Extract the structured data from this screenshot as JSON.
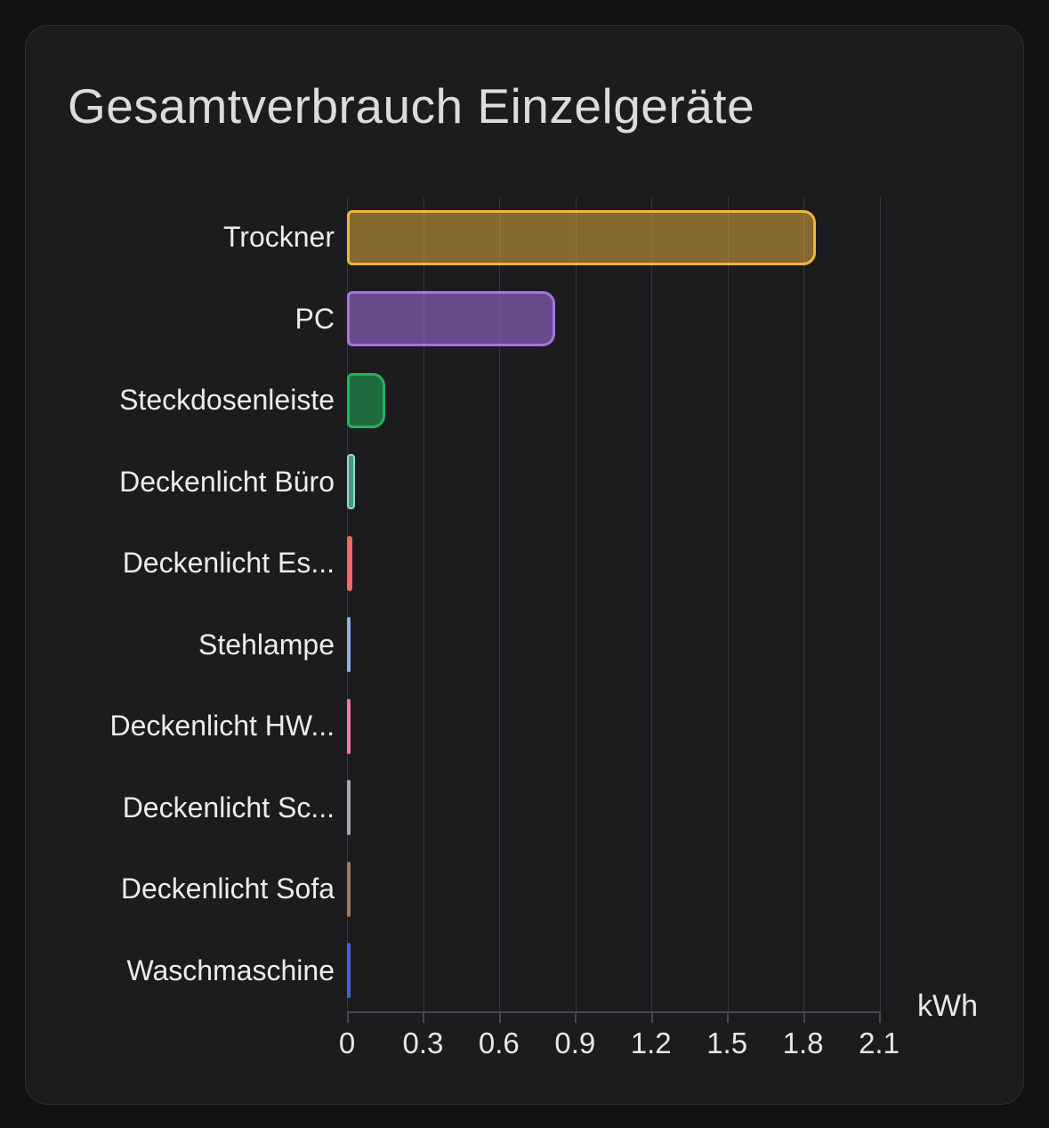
{
  "card": {
    "title": "Gesamtverbrauch Einzelgeräte"
  },
  "chart_data": {
    "type": "bar",
    "orientation": "horizontal",
    "title": "Gesamtverbrauch Einzelgeräte",
    "xlabel": "kWh",
    "ylabel": "",
    "xlim": [
      0,
      2.1
    ],
    "grid": true,
    "legend": false,
    "xtick_labels": [
      "0",
      "0.3",
      "0.6",
      "0.9",
      "1.2",
      "1.5",
      "1.8",
      "2.1"
    ],
    "xtick_values": [
      0,
      0.3,
      0.6,
      0.9,
      1.2,
      1.5,
      1.8,
      2.1
    ],
    "categories": [
      "Trockner",
      "PC",
      "Steckdosenleiste",
      "Deckenlicht Büro",
      "Deckenlicht Es...",
      "Stehlampe",
      "Deckenlicht HW...",
      "Deckenlicht Sc...",
      "Deckenlicht Sofa",
      "Waschmaschine"
    ],
    "values": [
      1.85,
      0.82,
      0.15,
      0.03,
      0.02,
      0.01,
      0.01,
      0.01,
      0.01,
      0.01
    ],
    "bar_styles": [
      {
        "border": "#efb63d",
        "fill": "rgba(239,182,61,0.5)"
      },
      {
        "border": "#a673e6",
        "fill": "rgba(166,115,230,0.55)"
      },
      {
        "border": "#23b25e",
        "fill": "rgba(35,178,94,0.52)"
      },
      {
        "border": "#93dcca",
        "fill": "#48968a"
      },
      {
        "border": "#f4695c",
        "fill": "#f4695c"
      },
      {
        "border": "#8ab2e8",
        "fill": "#8ab2e8"
      },
      {
        "border": "#f478a8",
        "fill": "#f478a8"
      },
      {
        "border": "#a8a8ac",
        "fill": "#a8a8ac"
      },
      {
        "border": "#a87652",
        "fill": "#a87652"
      },
      {
        "border": "#3a64d8",
        "fill": "#3a64d8"
      }
    ],
    "colors_semantic": {
      "card_background": "#1c1c1e",
      "page_background": "#121214",
      "gridline": "#37373b",
      "axis": "#48484c",
      "text": "#ececec",
      "title_text": "#dcdcdc"
    }
  }
}
